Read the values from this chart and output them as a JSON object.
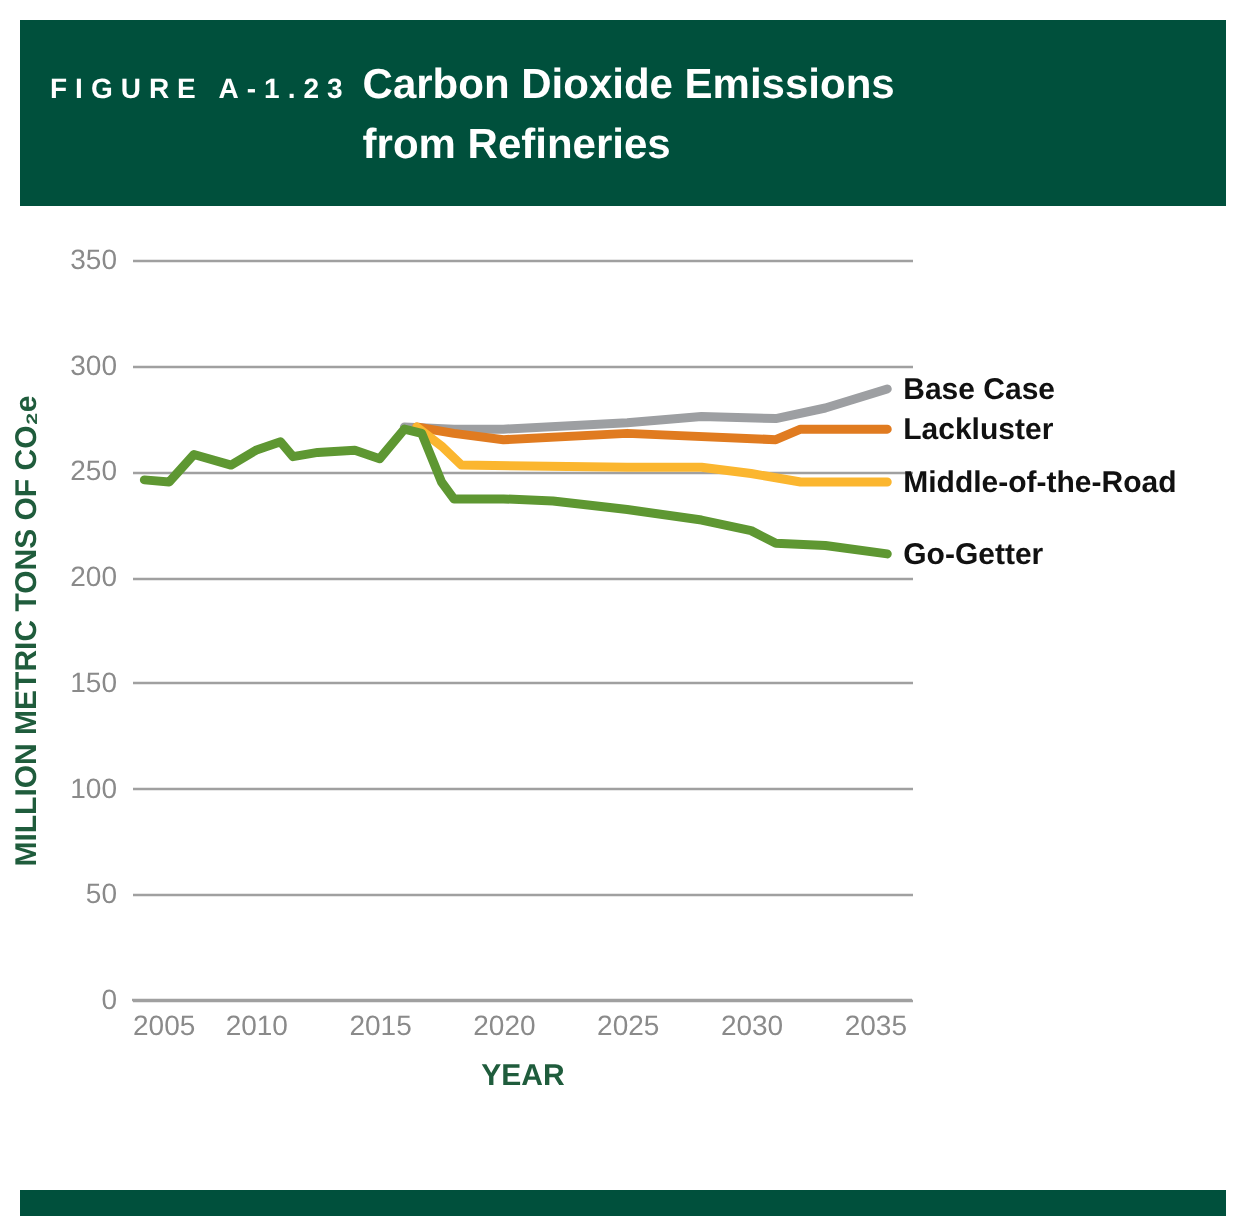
{
  "chart_data": {
    "type": "line",
    "title": "Carbon Dioxide Emissions from Refineries",
    "annotations": [
      "FIGURE A-1.23"
    ],
    "xlabel": "YEAR",
    "ylabel": "MILLION METRIC TONS OF CO₂e",
    "xlim": [
      2005,
      2036.5
    ],
    "xticks": [
      2005,
      2010,
      2015,
      2020,
      2025,
      2030,
      2035
    ],
    "ylim": [
      0,
      350
    ],
    "yticks": [
      0,
      50,
      100,
      150,
      200,
      250,
      300,
      350
    ],
    "grid": "y",
    "legend": false,
    "line_style": "solid",
    "marker": "none",
    "series": [
      {
        "name": "Base Case",
        "color": "#9d9fa2",
        "x": [
          2016,
          2018,
          2020,
          2025,
          2028,
          2031,
          2033,
          2035.5
        ],
        "values": [
          271,
          270,
          270,
          273,
          276,
          275,
          280,
          289
        ]
      },
      {
        "name": "Lackluster",
        "color": "#e07b20",
        "x": [
          2016.5,
          2018,
          2020,
          2025,
          2031,
          2032,
          2035.5
        ],
        "values": [
          271,
          268,
          265,
          268,
          265,
          270,
          270
        ]
      },
      {
        "name": "Middle-of-the-Road",
        "color": "#fbb62f",
        "x": [
          2016.5,
          2017.5,
          2018.3,
          2025,
          2028,
          2030,
          2032,
          2035.5
        ],
        "values": [
          271,
          262,
          253,
          252,
          252,
          249,
          245,
          245
        ]
      },
      {
        "name": "Go-Getter",
        "color": "#5e9732",
        "x": [
          2005.5,
          2006.5,
          2007.5,
          2009,
          2010,
          2011,
          2011.5,
          2012.5,
          2014,
          2015,
          2016,
          2016.7,
          2017.5,
          2018,
          2020,
          2022,
          2025,
          2028,
          2030,
          2031,
          2033,
          2035.5
        ],
        "values": [
          246,
          245,
          258,
          253,
          260,
          264,
          257,
          259,
          260,
          256,
          270,
          268,
          245,
          237,
          237,
          236,
          232,
          227,
          222,
          216,
          215,
          211
        ]
      }
    ]
  }
}
